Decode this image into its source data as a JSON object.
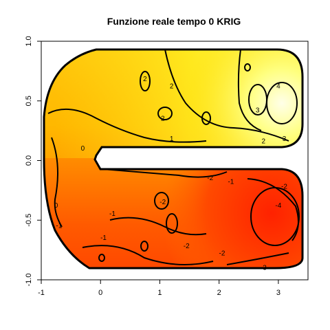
{
  "chart_data": {
    "type": "heatmap",
    "title": "Funzione reale tempo 0 KRIG",
    "xlabel": "",
    "ylabel": "",
    "xlim": [
      -1,
      3.5
    ],
    "ylim": [
      -1,
      1
    ],
    "x_ticks": [
      -1,
      0,
      1,
      2,
      3
    ],
    "y_ticks": [
      -1.0,
      -0.5,
      0.0,
      0.5,
      1.0
    ],
    "x_tick_labels": [
      "-1",
      "0",
      "1",
      "2",
      "3"
    ],
    "y_tick_labels": [
      "-1.0",
      "-0.5",
      "0.0",
      "0.5",
      "1.0"
    ],
    "color_scale": [
      "#ff2000",
      "#ff6a00",
      "#ffa500",
      "#ffd000",
      "#ffff60",
      "#ffffe0"
    ],
    "color_range": [
      -4,
      4
    ],
    "contour_labels": [
      {
        "text": "2",
        "x": 0.75,
        "y": 0.68
      },
      {
        "text": "2",
        "x": 1.2,
        "y": 0.62
      },
      {
        "text": "2",
        "x": 1.05,
        "y": 0.35
      },
      {
        "text": "1",
        "x": 1.2,
        "y": 0.18
      },
      {
        "text": "0",
        "x": -0.3,
        "y": 0.1
      },
      {
        "text": "-2",
        "x": 1.85,
        "y": -0.15
      },
      {
        "text": "-1",
        "x": 2.2,
        "y": -0.18
      },
      {
        "text": "-2",
        "x": 3.1,
        "y": -0.22
      },
      {
        "text": "-4",
        "x": 3.0,
        "y": -0.38
      },
      {
        "text": "-2",
        "x": 1.05,
        "y": -0.35
      },
      {
        "text": "-1",
        "x": 0.2,
        "y": -0.45
      },
      {
        "text": "-1",
        "x": 0.05,
        "y": -0.65
      },
      {
        "text": "-2",
        "x": 1.45,
        "y": -0.72
      },
      {
        "text": "-2",
        "x": 2.05,
        "y": -0.78
      },
      {
        "text": "-3",
        "x": 2.75,
        "y": -0.9
      },
      {
        "text": "0",
        "x": -0.75,
        "y": -0.38
      },
      {
        "text": "-1",
        "x": -0.7,
        "y": -0.55
      },
      {
        "text": "2",
        "x": 2.75,
        "y": 0.16
      },
      {
        "text": "3",
        "x": 3.1,
        "y": 0.18
      },
      {
        "text": "3",
        "x": 2.65,
        "y": 0.42
      },
      {
        "text": "4",
        "x": 3.0,
        "y": 0.62
      }
    ]
  }
}
